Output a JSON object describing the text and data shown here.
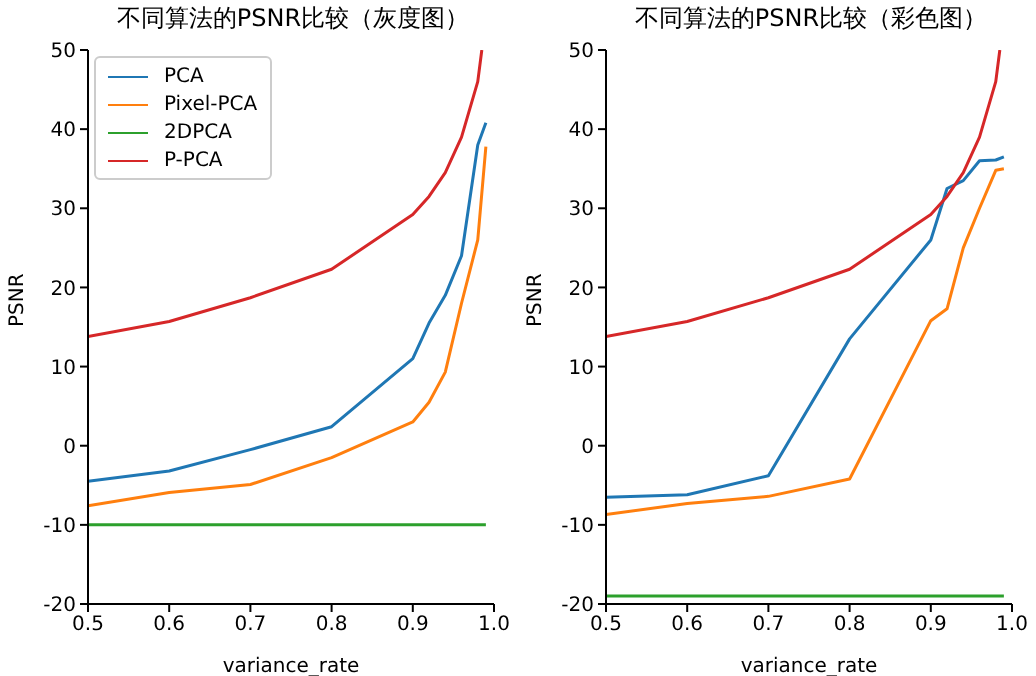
{
  "chart_data": [
    {
      "type": "line",
      "title": "不同算法的PSNR比较（灰度图）",
      "xlabel": "variance_rate",
      "ylabel": "PSNR",
      "x": [
        0.5,
        0.6,
        0.7,
        0.8,
        0.9,
        0.92,
        0.94,
        0.96,
        0.98,
        0.99
      ],
      "xlim": [
        0.5,
        1.0
      ],
      "xticks": [
        0.5,
        0.6,
        0.7,
        0.8,
        0.9,
        {
          "value": 1.0,
          "label": "1.0"
        }
      ],
      "ylim": [
        -20,
        50
      ],
      "yticks": [
        -20,
        -10,
        0,
        10,
        20,
        30,
        40,
        50
      ],
      "grid": false,
      "legend": "top left",
      "marker": "none",
      "line_style": "solid",
      "series": [
        {
          "name": "PCA",
          "color": "#1f77b4",
          "values": [
            -4.5,
            -3.2,
            -0.5,
            2.4,
            11,
            15.5,
            19,
            24,
            38,
            40.8
          ]
        },
        {
          "name": "Pixel-PCA",
          "color": "#ff7f0e",
          "values": [
            -7.6,
            -5.9,
            -4.9,
            -1.5,
            3,
            5.5,
            9.3,
            18,
            26,
            37.8
          ]
        },
        {
          "name": "2DPCA",
          "color": "#2ca02c",
          "values": [
            -10,
            -10,
            -10,
            -10,
            -10,
            -10,
            -10,
            -10,
            -10,
            -10
          ]
        },
        {
          "name": "P-PCA",
          "color": "#d62728",
          "x": [
            0.5,
            0.6,
            0.7,
            0.8,
            0.9,
            0.92,
            0.94,
            0.96,
            0.98,
            0.985
          ],
          "values": [
            13.8,
            15.7,
            18.7,
            22.3,
            29.2,
            31.5,
            34.5,
            39,
            46,
            50
          ]
        }
      ]
    },
    {
      "type": "line",
      "title": "不同算法的PSNR比较（彩色图）",
      "xlabel": "variance_rate",
      "ylabel": "PSNR",
      "x": [
        0.5,
        0.6,
        0.7,
        0.8,
        0.9,
        0.92,
        0.94,
        0.96,
        0.98,
        0.99
      ],
      "xlim": [
        0.5,
        1.0
      ],
      "xticks": [
        0.5,
        0.6,
        0.7,
        0.8,
        0.9,
        {
          "value": 1.0,
          "label": "1.0"
        }
      ],
      "ylim": [
        -20,
        50
      ],
      "yticks": [
        -20,
        -10,
        0,
        10,
        20,
        30,
        40,
        50
      ],
      "grid": false,
      "legend": false,
      "marker": "none",
      "line_style": "solid",
      "series": [
        {
          "color": "#1f77b4",
          "values": [
            -6.5,
            -6.2,
            -3.8,
            13.5,
            26,
            32.5,
            33.5,
            36,
            36.1,
            36.5
          ]
        },
        {
          "color": "#ff7f0e",
          "values": [
            -8.7,
            -7.3,
            -6.4,
            -4.2,
            15.8,
            17.3,
            25,
            30,
            34.8,
            35
          ]
        },
        {
          "color": "#2ca02c",
          "values": [
            -19,
            -19,
            -19,
            -19,
            -19,
            -19,
            -19,
            -19,
            -19,
            -19
          ]
        },
        {
          "color": "#d62728",
          "x": [
            0.5,
            0.6,
            0.7,
            0.8,
            0.9,
            0.92,
            0.94,
            0.96,
            0.98,
            0.985
          ],
          "values": [
            13.8,
            15.7,
            18.7,
            22.3,
            29.2,
            31.5,
            34.5,
            39,
            46,
            50
          ]
        }
      ]
    }
  ]
}
